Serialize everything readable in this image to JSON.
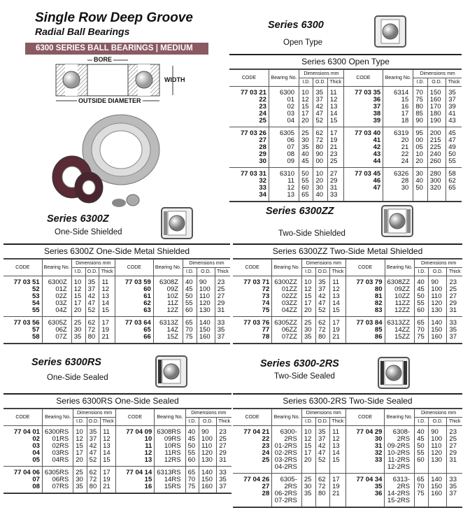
{
  "header": {
    "title": "Single Row Deep Groove",
    "subtitle": "Radial Ball Bearings",
    "banner": "6300 SERIES BALL BEARINGS | MEDIUM",
    "banner_color": "#8a5a63"
  },
  "diagram": {
    "bore": "BORE",
    "width": "WIDTH",
    "outside_diameter": "OUTSIDE DIAMETER"
  },
  "columns": {
    "code": "CODE",
    "bearing": "Bearing No.",
    "dimensions": "Dimensions mm",
    "id": "I.D.",
    "od": "O.D.",
    "thick": "Thick"
  },
  "sections": [
    {
      "heading": "Series 6300",
      "sub": "Open Type",
      "icon": "open-bearing-icon",
      "table": {
        "title": "Series 6300 Open Type",
        "left": [
          [
            [
              "77 03 21",
              "6300",
              "10",
              "35",
              "11"
            ],
            [
              "22",
              "01",
              "12",
              "37",
              "12"
            ],
            [
              "23",
              "02",
              "15",
              "42",
              "13"
            ],
            [
              "24",
              "03",
              "17",
              "47",
              "14"
            ],
            [
              "25",
              "04",
              "20",
              "52",
              "15"
            ]
          ],
          [
            [
              "77 03 26",
              "6305",
              "25",
              "62",
              "17"
            ],
            [
              "27",
              "06",
              "30",
              "72",
              "19"
            ],
            [
              "28",
              "07",
              "35",
              "80",
              "21"
            ],
            [
              "29",
              "08",
              "40",
              "90",
              "23"
            ],
            [
              "30",
              "09",
              "45",
              "00",
              "25"
            ]
          ],
          [
            [
              "77 03 31",
              "6310",
              "50",
              "10",
              "27"
            ],
            [
              "32",
              "11",
              "55",
              "20",
              "29"
            ],
            [
              "33",
              "12",
              "60",
              "30",
              "31"
            ],
            [
              "34",
              "13",
              "65",
              "40",
              "33"
            ]
          ]
        ],
        "right": [
          [
            [
              "77 03 35",
              "6314",
              "70",
              "150",
              "35"
            ],
            [
              "36",
              "15",
              "75",
              "160",
              "37"
            ],
            [
              "37",
              "16",
              "80",
              "170",
              "39"
            ],
            [
              "38",
              "17",
              "85",
              "180",
              "41"
            ],
            [
              "39",
              "18",
              "90",
              "190",
              "43"
            ]
          ],
          [
            [
              "77 03 40",
              "6319",
              "95",
              "200",
              "45"
            ],
            [
              "41",
              "20",
              "00",
              "215",
              "47"
            ],
            [
              "42",
              "21",
              "05",
              "225",
              "49"
            ],
            [
              "43",
              "22",
              "10",
              "240",
              "50"
            ],
            [
              "44",
              "24",
              "20",
              "260",
              "55"
            ]
          ],
          [
            [
              "77 03 45",
              "6326",
              "30",
              "280",
              "58"
            ],
            [
              "46",
              "28",
              "40",
              "300",
              "62"
            ],
            [
              "47",
              "30",
              "50",
              "320",
              "65"
            ]
          ]
        ]
      }
    },
    {
      "heading": "Series 6300Z",
      "sub": "One-Side Shielded",
      "icon": "one-side-shielded-bearing-icon",
      "table": {
        "title": "Series 6300Z One-Side Metal Shielded",
        "left": [
          [
            [
              "77 03 51",
              "6300Z",
              "10",
              "35",
              "11"
            ],
            [
              "52",
              "01Z",
              "12",
              "37",
              "12"
            ],
            [
              "53",
              "02Z",
              "15",
              "42",
              "13"
            ],
            [
              "54",
              "03Z",
              "17",
              "47",
              "14"
            ],
            [
              "55",
              "04Z",
              "20",
              "52",
              "15"
            ]
          ],
          [
            [
              "77 03 56",
              "6305Z",
              "25",
              "62",
              "17"
            ],
            [
              "57",
              "06Z",
              "30",
              "72",
              "19"
            ],
            [
              "58",
              "07Z",
              "35",
              "80",
              "21"
            ]
          ]
        ],
        "right": [
          [
            [
              "77 03 59",
              "6308Z",
              "40",
              "90",
              "23"
            ],
            [
              "60",
              "09Z",
              "45",
              "100",
              "25"
            ],
            [
              "61",
              "10Z",
              "50",
              "110",
              "27"
            ],
            [
              "62",
              "11Z",
              "55",
              "120",
              "29"
            ],
            [
              "63",
              "12Z",
              "60",
              "130",
              "31"
            ]
          ],
          [
            [
              "77 03 64",
              "6313Z",
              "65",
              "140",
              "33"
            ],
            [
              "65",
              "14Z",
              "70",
              "150",
              "35"
            ],
            [
              "66",
              "15Z",
              "75",
              "160",
              "37"
            ]
          ]
        ]
      }
    },
    {
      "heading": "Series 6300ZZ",
      "sub": "Two-Side Shielded",
      "icon": "two-side-shielded-bearing-icon",
      "table": {
        "title": "Series 6300ZZ Two-Side Metal Shielded",
        "left": [
          [
            [
              "77 03 71",
              "6300ZZ",
              "10",
              "35",
              "11"
            ],
            [
              "72",
              "01ZZ",
              "12",
              "37",
              "12"
            ],
            [
              "73",
              "02ZZ",
              "15",
              "42",
              "13"
            ],
            [
              "74",
              "03ZZ",
              "17",
              "47",
              "14"
            ],
            [
              "75",
              "04ZZ",
              "20",
              "52",
              "15"
            ]
          ],
          [
            [
              "77 03 76",
              "6305ZZ",
              "25",
              "62",
              "17"
            ],
            [
              "77",
              "06ZZ",
              "30",
              "72",
              "19"
            ],
            [
              "78",
              "07ZZ",
              "35",
              "80",
              "21"
            ]
          ]
        ],
        "right": [
          [
            [
              "77 03 79",
              "6308ZZ",
              "40",
              "90",
              "23"
            ],
            [
              "80",
              "09ZZ",
              "45",
              "100",
              "25"
            ],
            [
              "81",
              "10ZZ",
              "50",
              "110",
              "27"
            ],
            [
              "82",
              "11ZZ",
              "55",
              "120",
              "29"
            ],
            [
              "83",
              "12ZZ",
              "60",
              "130",
              "31"
            ]
          ],
          [
            [
              "77 03 84",
              "6313ZZ",
              "65",
              "140",
              "33"
            ],
            [
              "85",
              "14ZZ",
              "70",
              "150",
              "35"
            ],
            [
              "86",
              "15ZZ",
              "75",
              "160",
              "37"
            ]
          ]
        ]
      }
    },
    {
      "heading": "Series 6300RS",
      "sub": "One-Side Sealed",
      "icon": "one-side-sealed-bearing-icon",
      "table": {
        "title": "Series 6300RS One-Side Sealed",
        "left": [
          [
            [
              "77 04 01",
              "6300RS",
              "10",
              "35",
              "11"
            ],
            [
              "02",
              "01RS",
              "12",
              "37",
              "12"
            ],
            [
              "03",
              "02RS",
              "15",
              "42",
              "13"
            ],
            [
              "04",
              "03RS",
              "17",
              "47",
              "14"
            ],
            [
              "05",
              "04RS",
              "20",
              "52",
              "15"
            ]
          ],
          [
            [
              "77 04 06",
              "6305RS",
              "25",
              "62",
              "17"
            ],
            [
              "07",
              "06RS",
              "30",
              "72",
              "19"
            ],
            [
              "08",
              "07RS",
              "35",
              "80",
              "21"
            ]
          ]
        ],
        "right": [
          [
            [
              "77 04 09",
              "6308RS",
              "40",
              "90",
              "23"
            ],
            [
              "10",
              "09RS",
              "45",
              "100",
              "25"
            ],
            [
              "11",
              "10RS",
              "50",
              "110",
              "27"
            ],
            [
              "12",
              "11RS",
              "55",
              "120",
              "29"
            ],
            [
              "13",
              "12RS",
              "60",
              "130",
              "31"
            ]
          ],
          [
            [
              "77 04 14",
              "6313RS",
              "65",
              "140",
              "33"
            ],
            [
              "15",
              "14RS",
              "70",
              "150",
              "35"
            ],
            [
              "16",
              "15RS",
              "75",
              "160",
              "37"
            ]
          ]
        ]
      }
    },
    {
      "heading": "Series 6300-2RS",
      "sub": "Two-Side Sealed",
      "icon": "two-side-sealed-bearing-icon",
      "table": {
        "title": "Series 6300-2RS Two-Side Sealed",
        "left": [
          [
            [
              "77 04 21",
              "6300-2RS",
              "10",
              "35",
              "11"
            ],
            [
              "22",
              "01-2RS",
              "12",
              "37",
              "12"
            ],
            [
              "23",
              "02-2RS",
              "15",
              "42",
              "13"
            ],
            [
              "24",
              "03-2RS",
              "17",
              "47",
              "14"
            ],
            [
              "25",
              "04-2RS",
              "20",
              "52",
              "15"
            ]
          ],
          [
            [
              "77 04 26",
              "6305-2RS",
              "25",
              "62",
              "17"
            ],
            [
              "27",
              "06-2RS",
              "30",
              "72",
              "19"
            ],
            [
              "28",
              "07-2RS",
              "35",
              "80",
              "21"
            ]
          ]
        ],
        "right": [
          [
            [
              "77 04 29",
              "6308-2RS",
              "40",
              "90",
              "23"
            ],
            [
              "30",
              "09-2RS",
              "45",
              "100",
              "25"
            ],
            [
              "31",
              "10-2RS",
              "50",
              "110",
              "27"
            ],
            [
              "32",
              "11-2RS",
              "55",
              "120",
              "29"
            ],
            [
              "33",
              "12-2RS",
              "60",
              "130",
              "31"
            ]
          ],
          [
            [
              "77 04 34",
              "6313-2RS",
              "65",
              "140",
              "33"
            ],
            [
              "35",
              "14-2RS",
              "70",
              "150",
              "35"
            ],
            [
              "36",
              "15-2RS",
              "75",
              "160",
              "37"
            ]
          ]
        ]
      }
    }
  ]
}
